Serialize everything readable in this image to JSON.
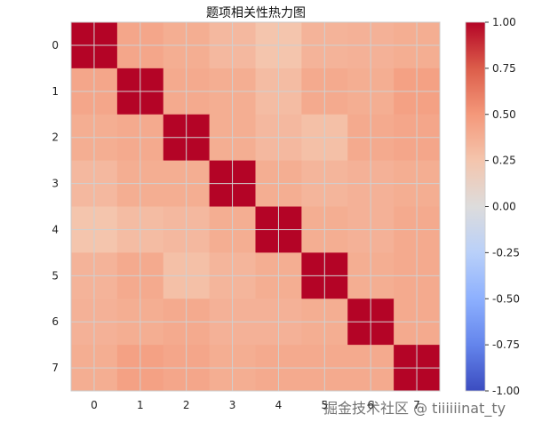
{
  "chart_data": {
    "type": "heatmap",
    "title": "题项相关性热力图",
    "xlabel": "",
    "ylabel": "",
    "x_tick_labels": [
      "0",
      "1",
      "2",
      "3",
      "4",
      "5",
      "6",
      "7"
    ],
    "y_tick_labels": [
      "0",
      "1",
      "2",
      "3",
      "4",
      "5",
      "6",
      "7"
    ],
    "matrix": [
      [
        1.0,
        0.42,
        0.38,
        0.32,
        0.25,
        0.35,
        0.36,
        0.38
      ],
      [
        0.42,
        1.0,
        0.4,
        0.38,
        0.3,
        0.4,
        0.38,
        0.45
      ],
      [
        0.38,
        0.4,
        1.0,
        0.38,
        0.32,
        0.28,
        0.4,
        0.42
      ],
      [
        0.32,
        0.38,
        0.38,
        1.0,
        0.38,
        0.34,
        0.36,
        0.38
      ],
      [
        0.25,
        0.3,
        0.32,
        0.38,
        1.0,
        0.38,
        0.36,
        0.4
      ],
      [
        0.35,
        0.4,
        0.28,
        0.34,
        0.38,
        1.0,
        0.38,
        0.4
      ],
      [
        0.36,
        0.38,
        0.4,
        0.36,
        0.36,
        0.38,
        1.0,
        0.4
      ],
      [
        0.38,
        0.45,
        0.42,
        0.38,
        0.4,
        0.4,
        0.4,
        1.0
      ]
    ],
    "vmin": -1.0,
    "vmax": 1.0,
    "colormap": "coolwarm",
    "colorbar_ticks": [
      "1.00",
      "0.75",
      "0.50",
      "0.25",
      "0.00",
      "-0.25",
      "-0.50",
      "-0.75",
      "-1.00"
    ],
    "colorbar_tick_values": [
      1.0,
      0.75,
      0.5,
      0.25,
      0.0,
      -0.25,
      -0.5,
      -0.75,
      -1.0
    ],
    "grid": true,
    "colors": {
      "low": "#3b4cc0",
      "mid": "#dddddd",
      "high": "#b40426"
    }
  },
  "watermark": "掘金技术社区 @ tiiiiiinat_ty"
}
